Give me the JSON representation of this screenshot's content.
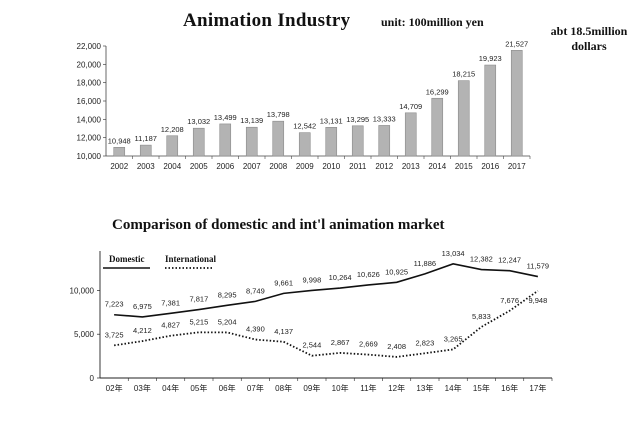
{
  "titles": {
    "bar_title": "Animation Industry",
    "bar_unit": "unit: 100million yen",
    "bar_note": "abt 18.5million dollars",
    "line_title": "Comparison of domestic and int'l animation market"
  },
  "chart_data": [
    {
      "type": "bar",
      "title": "Animation Industry",
      "unit": "unit: 100million yen",
      "annotation": "abt 18.5million dollars",
      "categories": [
        "2002",
        "2003",
        "2004",
        "2005",
        "2006",
        "2007",
        "2008",
        "2009",
        "2010",
        "2011",
        "2012",
        "2013",
        "2014",
        "2015",
        "2016",
        "2017"
      ],
      "values": [
        10948,
        11187,
        12208,
        13032,
        13499,
        13139,
        13798,
        12542,
        13131,
        13295,
        13333,
        14709,
        16299,
        18215,
        19923,
        21527
      ],
      "value_labels": [
        "10,948",
        "11,187",
        "12,208",
        "13,032",
        "13,499",
        "13,139",
        "13,798",
        "12,542",
        "13,131",
        "13,295",
        "13,333",
        "14,709",
        "16,299",
        "18,215",
        "19,923",
        "21,527"
      ],
      "yticks": [
        "10,000",
        "12,000",
        "14,000",
        "16,000",
        "18,000",
        "20,000",
        "22,000"
      ],
      "ylim": [
        10000,
        22000
      ],
      "grid": false,
      "bar_color": "#b3b3b3"
    },
    {
      "type": "line",
      "title": "Comparison of domestic and int'l animation market",
      "categories": [
        "02年",
        "03年",
        "04年",
        "05年",
        "06年",
        "07年",
        "08年",
        "09年",
        "10年",
        "11年",
        "12年",
        "13年",
        "14年",
        "15年",
        "16年",
        "17年"
      ],
      "yticks": [
        "0",
        "5,000",
        "10,000"
      ],
      "ylim": [
        0,
        14500
      ],
      "legend_position": "top-left",
      "series": [
        {
          "name": "Domestic",
          "style": "solid",
          "values": [
            7223,
            6975,
            7381,
            7817,
            8295,
            8749,
            9661,
            9998,
            10264,
            10626,
            10925,
            11886,
            13034,
            12382,
            12247,
            11579
          ],
          "labels": [
            "7,223",
            "6,975",
            "7,381",
            "7,817",
            "8,295",
            "8,749",
            "9,661",
            "9,998",
            "10,264",
            "10,626",
            "10,925",
            "11,886",
            "13,034",
            "12,382",
            "12,247",
            "11,579"
          ]
        },
        {
          "name": "International",
          "style": "dotted",
          "values": [
            3725,
            4212,
            4827,
            5215,
            5204,
            4390,
            4137,
            2544,
            2867,
            2669,
            2408,
            2823,
            3265,
            5833,
            7676,
            9948
          ],
          "labels": [
            "3,725",
            "4,212",
            "4,827",
            "5,215",
            "5,204",
            "4,390",
            "4,137",
            "2,544",
            "2,867",
            "2,669",
            "2,408",
            "2,823",
            "3,265",
            "5,833",
            "7,676",
            "9,948"
          ]
        }
      ]
    }
  ]
}
